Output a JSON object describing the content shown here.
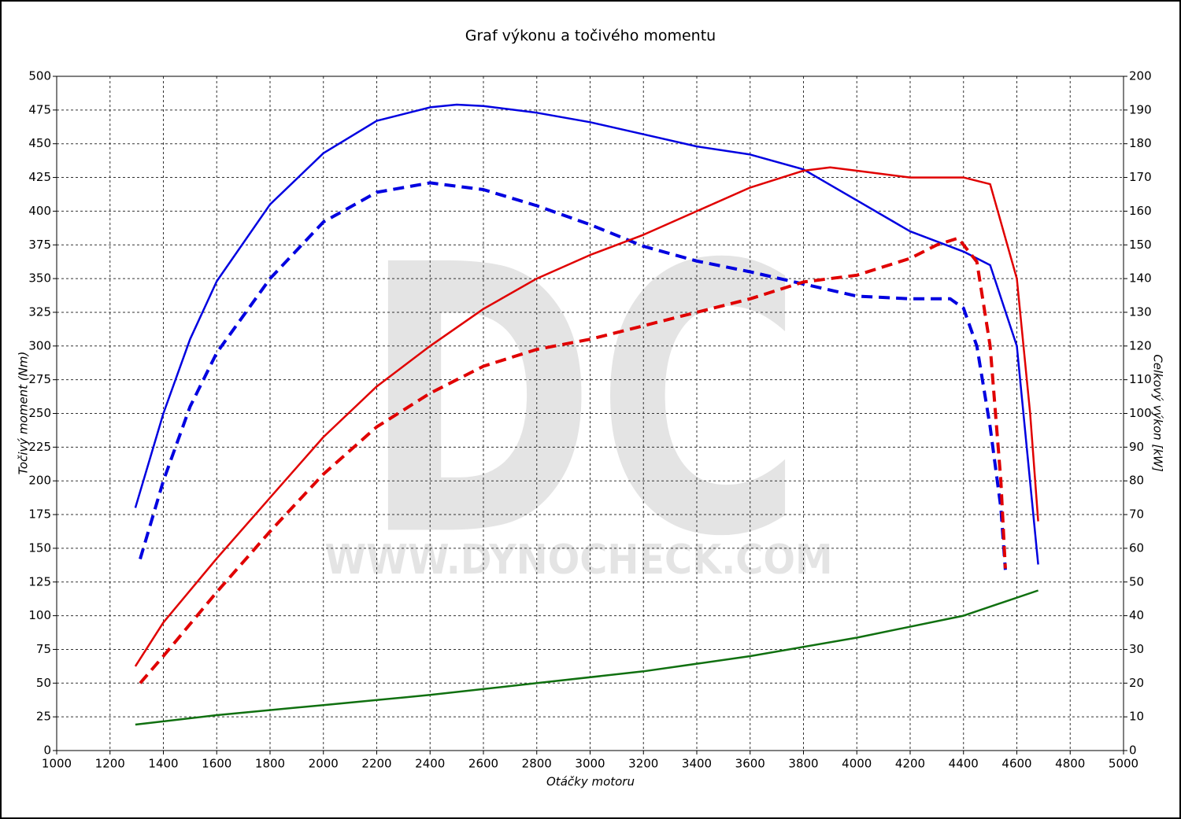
{
  "chart_data": {
    "type": "line",
    "title": "Graf výkonu a točivého momentu",
    "xlabel": "Otáčky motoru",
    "ylabel": "Točivý moment (Nm)",
    "y2label": "Celkový výkon [kW]",
    "watermark": "DC",
    "watermark_url": "WWW.DYNOCHECK.COM",
    "grid": true,
    "xlim": [
      1000,
      5000
    ],
    "xticks": [
      1000,
      1200,
      1400,
      1600,
      1800,
      2000,
      2200,
      2400,
      2600,
      2800,
      3000,
      3200,
      3400,
      3600,
      3800,
      4000,
      4200,
      4400,
      4600,
      4800,
      5000
    ],
    "ylim": [
      0,
      500
    ],
    "yticks": [
      0,
      25,
      50,
      75,
      100,
      125,
      150,
      175,
      200,
      225,
      250,
      275,
      300,
      325,
      350,
      375,
      400,
      425,
      450,
      475,
      500
    ],
    "y2lim": [
      0,
      200
    ],
    "y2ticks": [
      0,
      10,
      20,
      30,
      40,
      50,
      60,
      70,
      80,
      90,
      100,
      110,
      120,
      130,
      140,
      150,
      160,
      170,
      180,
      190,
      200
    ],
    "series": [
      {
        "color": "#0000e0",
        "dash": false,
        "axis": "y",
        "x": [
          1295,
          1400,
          1500,
          1600,
          1800,
          2000,
          2200,
          2400,
          2500,
          2600,
          2800,
          3000,
          3200,
          3400,
          3600,
          3800,
          4000,
          4200,
          4400,
          4500,
          4600,
          4680
        ],
        "values": [
          180,
          250,
          305,
          348,
          405,
          443,
          467,
          477,
          479,
          478,
          473,
          466,
          457,
          448,
          442,
          431,
          408,
          385,
          370,
          360,
          300,
          138
        ]
      },
      {
        "color": "#0000e0",
        "dash": true,
        "axis": "y",
        "x": [
          1313,
          1400,
          1500,
          1600,
          1800,
          2000,
          2200,
          2400,
          2600,
          2800,
          3000,
          3200,
          3400,
          3600,
          3800,
          4000,
          4200,
          4350,
          4400,
          4450,
          4500,
          4540,
          4557
        ],
        "values": [
          142,
          200,
          255,
          295,
          350,
          392,
          414,
          421,
          416,
          404,
          390,
          374,
          363,
          355,
          346,
          337,
          335,
          335,
          328,
          300,
          240,
          180,
          134
        ]
      },
      {
        "color": "#e00000",
        "dash": false,
        "axis": "y2",
        "x": [
          1295,
          1400,
          1600,
          1800,
          2000,
          2200,
          2400,
          2600,
          2800,
          3000,
          3200,
          3400,
          3600,
          3800,
          3900,
          4000,
          4200,
          4400,
          4500,
          4600,
          4650,
          4680
        ],
        "values": [
          25,
          38,
          57,
          75,
          93,
          108,
          120,
          131,
          140,
          147,
          153,
          160,
          167,
          172,
          173,
          172,
          170,
          170,
          168,
          140,
          100,
          68
        ]
      },
      {
        "color": "#e00000",
        "dash": true,
        "axis": "y2",
        "x": [
          1313,
          1400,
          1600,
          1800,
          2000,
          2200,
          2400,
          2600,
          2800,
          3000,
          3200,
          3400,
          3600,
          3800,
          4000,
          4200,
          4300,
          4380,
          4450,
          4500,
          4540,
          4557
        ],
        "values": [
          20,
          28,
          47,
          65,
          82,
          96,
          106,
          114,
          119,
          122,
          126,
          130,
          134,
          139,
          141,
          146,
          150,
          152,
          145,
          120,
          80,
          54
        ]
      },
      {
        "color": "#107010",
        "dash": false,
        "axis": "y2",
        "x": [
          1295,
          1600,
          2000,
          2400,
          2800,
          3200,
          3600,
          4000,
          4400,
          4680
        ],
        "values": [
          7.7,
          10.5,
          13.5,
          16.5,
          20,
          23.5,
          28,
          33.5,
          40,
          47.5
        ]
      }
    ]
  }
}
